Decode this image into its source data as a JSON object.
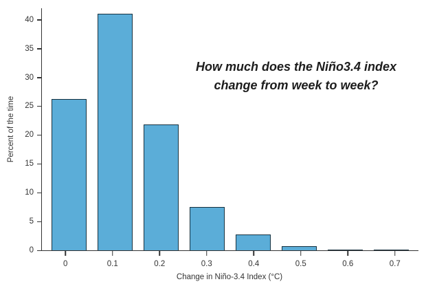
{
  "chart_data": {
    "type": "bar",
    "categories": [
      "0",
      "0.1",
      "0.2",
      "0.3",
      "0.4",
      "0.5",
      "0.6",
      "0.7"
    ],
    "values": [
      26.3,
      41,
      21.8,
      7.5,
      2.8,
      0.7,
      0.15,
      0.15
    ],
    "title": "How much does the Niño3.4 index change from week to week?",
    "annotation_lines": [
      "How much does the Niño3.4 index",
      "change from week to week?"
    ],
    "xlabel": "Change in Niño-3.4 Index (°C)",
    "ylabel": "Percent of the time",
    "ylim": [
      0,
      42
    ],
    "yticks": [
      0,
      5,
      10,
      15,
      20,
      25,
      30,
      35,
      40
    ],
    "grid": false,
    "legend": "none",
    "bar_color": "#5BADD8",
    "bar_edge_color": "#16313F",
    "axis_color": "#333333"
  }
}
